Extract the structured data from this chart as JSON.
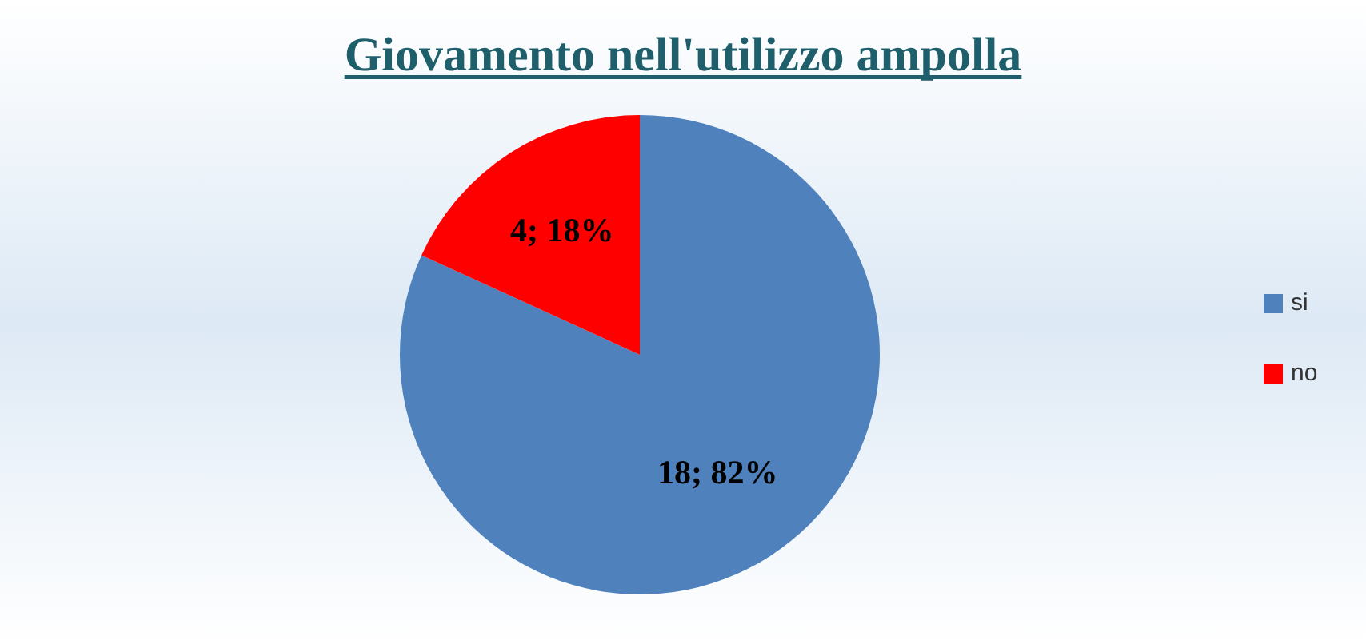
{
  "chart_data": {
    "type": "pie",
    "title": "Giovamento nell'utilizzo ampolla",
    "categories": [
      "si",
      "no"
    ],
    "values": [
      18,
      4
    ],
    "colors": [
      "#4f81bd",
      "#ff0000"
    ],
    "value_labels": [
      "18; 82%",
      "4; 18%"
    ],
    "legend": "right"
  }
}
